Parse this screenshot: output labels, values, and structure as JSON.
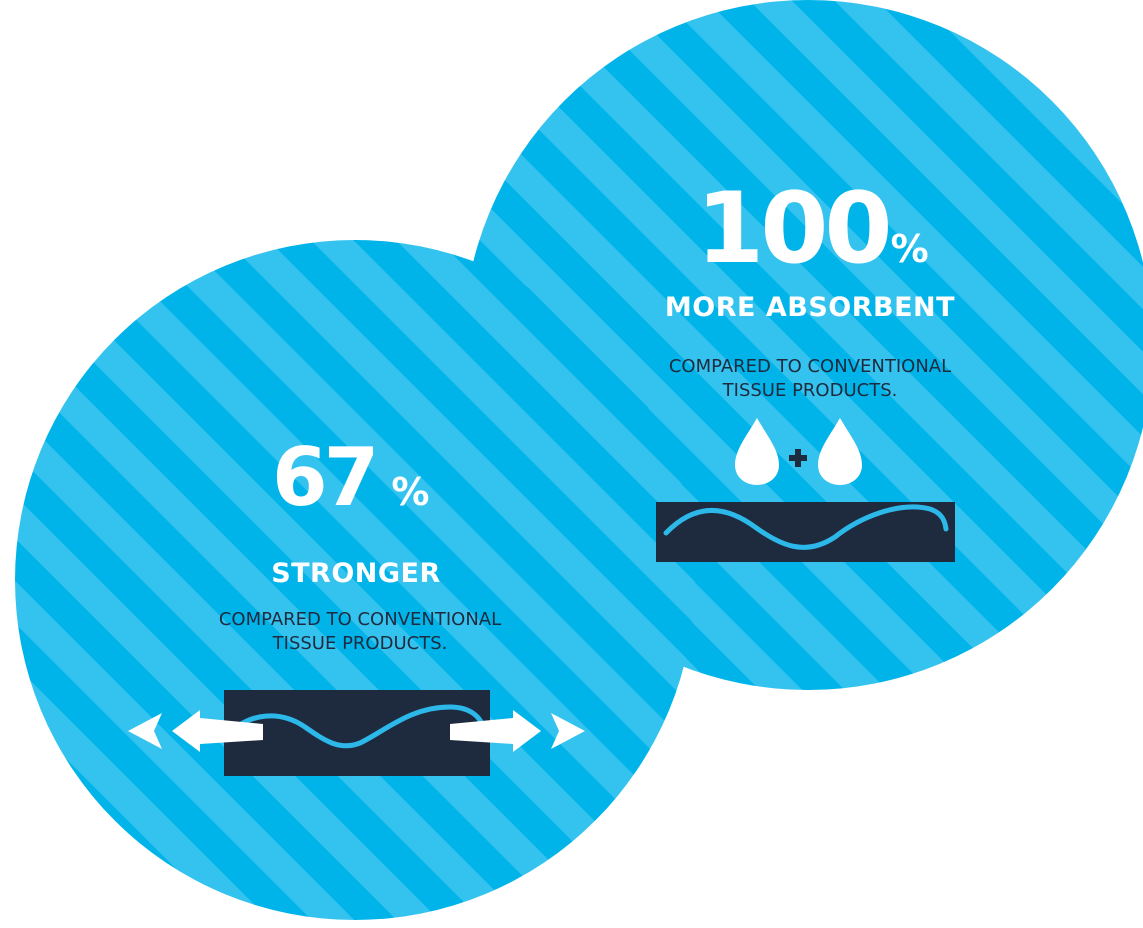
{
  "absorbent": {
    "number": "100",
    "percent": "%",
    "headline": "MORE ABSORBENT",
    "caption": "COMPARED TO CONVENTIONAL\nTISSUE PRODUCTS.",
    "icons": [
      "water-drop-icon",
      "plus-icon",
      "water-drop-icon",
      "tissue-layer-icon"
    ]
  },
  "stronger": {
    "number": "67",
    "percent": "%",
    "headline": "STRONGER",
    "caption": "COMPARED TO CONVENTIONAL\nTISSUE PRODUCTS.",
    "icons": [
      "tissue-layer-icon",
      "stretch-arrow-left-icon",
      "stretch-arrow-right-icon"
    ]
  },
  "colors": {
    "circle_stripe_dark": "#00b4ea",
    "circle_stripe_light": "#34c3ef",
    "text_white": "#ffffff",
    "text_navy": "#1e2a3e",
    "tissue_block": "#1e2a3e",
    "wave_line": "#2cb9ea"
  }
}
